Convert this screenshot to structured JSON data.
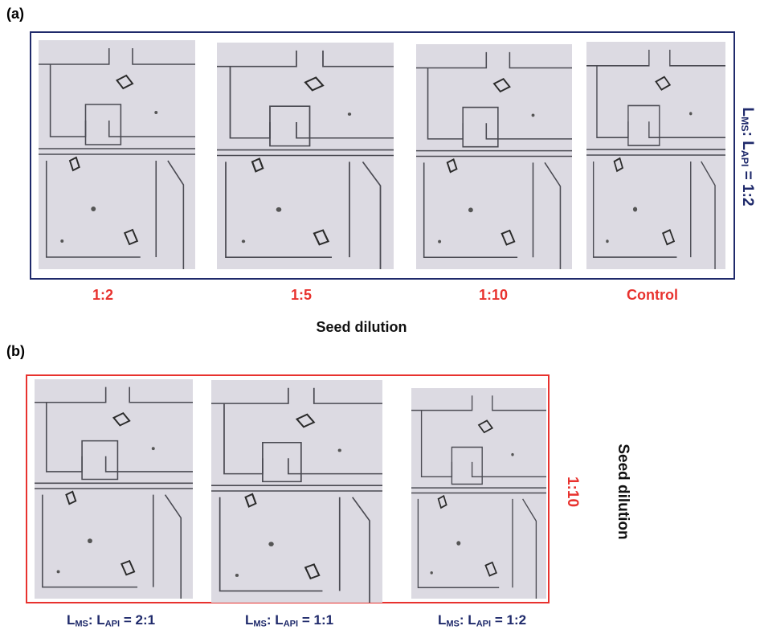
{
  "panel_a": {
    "label": "(a)",
    "images": [
      {
        "label": "1:2"
      },
      {
        "label": "1:5"
      },
      {
        "label": "1:10"
      },
      {
        "label": "Control"
      }
    ],
    "axis_label": "Seed dilution",
    "side_label": {
      "segments": [
        "L",
        "MS",
        ": L",
        "API",
        " = 1:2"
      ]
    }
  },
  "panel_b": {
    "label": "(b)",
    "images": [
      {
        "label": {
          "segments": [
            "L",
            "MS",
            ": L",
            "API",
            " = 2:1"
          ]
        }
      },
      {
        "label": {
          "segments": [
            "L",
            "MS",
            ": L",
            "API",
            " = 1:1"
          ]
        }
      },
      {
        "label": {
          "segments": [
            "L",
            "MS",
            ": L",
            "API",
            " = 1:2"
          ]
        }
      }
    ],
    "side_label": "1:10",
    "side_title": "Seed dilution"
  }
}
